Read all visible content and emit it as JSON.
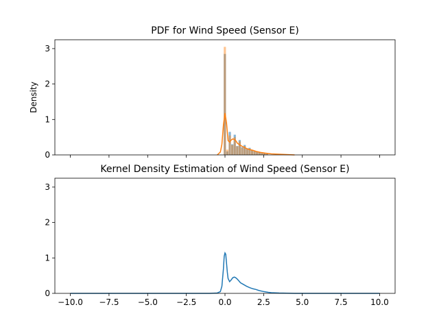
{
  "chart_data": [
    {
      "type": "bar",
      "title": "PDF for Wind Speed (Sensor E)",
      "xlabel": "",
      "ylabel": "Density",
      "xlim": [
        -11.0,
        11.0
      ],
      "ylim": [
        0,
        3.25
      ],
      "x_ticks": [
        -10.0,
        -7.5,
        -5.0,
        -2.5,
        0.0,
        2.5,
        5.0,
        7.5,
        10.0
      ],
      "x_tick_labels_visible": false,
      "y_ticks": [
        0,
        1,
        2,
        3
      ],
      "y_tick_labels": [
        "0",
        "1",
        "2",
        "3"
      ],
      "grid": false,
      "legend": null,
      "colors": {
        "series_a": "#1f77b4",
        "series_b": "#ff7f0e",
        "overlap": "#8c7b6c"
      },
      "series": [
        {
          "type": "histogram",
          "bin_edges": [
            -0.08,
            0.08,
            0.24,
            0.4,
            0.56,
            0.72,
            0.88,
            1.04,
            1.2,
            1.36,
            1.52,
            1.68,
            1.84,
            2.0,
            2.16,
            2.32,
            2.48,
            2.64,
            2.8
          ],
          "values": [
            2.85,
            0.1,
            0.65,
            0.3,
            0.57,
            0.25,
            0.42,
            0.22,
            0.28,
            0.18,
            0.2,
            0.14,
            0.12,
            0.1,
            0.08,
            0.06,
            0.05,
            0.03
          ],
          "color": "#1f77b4"
        },
        {
          "type": "histogram",
          "bin_edges": [
            -0.08,
            0.08,
            0.24,
            0.4,
            0.56,
            0.72,
            0.88,
            1.04,
            1.2,
            1.36,
            1.52,
            1.68,
            1.84,
            2.0,
            2.16,
            2.32,
            2.48,
            2.64,
            2.8
          ],
          "values": [
            3.05,
            0.15,
            0.55,
            0.28,
            0.5,
            0.24,
            0.38,
            0.2,
            0.25,
            0.16,
            0.18,
            0.13,
            0.11,
            0.09,
            0.07,
            0.05,
            0.04,
            0.03
          ],
          "color": "#ff7f0e"
        },
        {
          "type": "kde",
          "x": [
            -0.5,
            -0.3,
            -0.2,
            -0.1,
            0.0,
            0.1,
            0.2,
            0.3,
            0.4,
            0.5,
            0.6,
            0.7,
            0.8,
            1.0,
            1.2,
            1.4,
            1.6,
            1.8,
            2.0,
            2.3,
            2.6,
            3.0,
            3.5,
            4.0,
            4.5
          ],
          "y": [
            0.0,
            0.08,
            0.3,
            0.85,
            1.18,
            0.9,
            0.4,
            0.36,
            0.42,
            0.45,
            0.44,
            0.4,
            0.33,
            0.27,
            0.22,
            0.18,
            0.15,
            0.13,
            0.1,
            0.07,
            0.05,
            0.03,
            0.02,
            0.01,
            0.0
          ],
          "color": "#ff7f0e"
        }
      ]
    },
    {
      "type": "line",
      "title": "Kernel Density Estimation of Wind Speed (Sensor E)",
      "xlabel": "",
      "ylabel": "",
      "xlim": [
        -11.0,
        11.0
      ],
      "ylim": [
        0,
        3.25
      ],
      "x_ticks": [
        -10.0,
        -7.5,
        -5.0,
        -2.5,
        0.0,
        2.5,
        5.0,
        7.5,
        10.0
      ],
      "x_tick_labels": [
        "−10.0",
        "−7.5",
        "−5.0",
        "−2.5",
        "0.0",
        "2.5",
        "5.0",
        "7.5",
        "10.0"
      ],
      "y_ticks": [
        0,
        1,
        2,
        3
      ],
      "y_tick_labels": [
        "0",
        "1",
        "2",
        "3"
      ],
      "grid": false,
      "legend": null,
      "series": [
        {
          "x": [
            -10.0,
            -1.0,
            -0.5,
            -0.3,
            -0.2,
            -0.1,
            -0.05,
            0.0,
            0.05,
            0.1,
            0.15,
            0.2,
            0.3,
            0.4,
            0.5,
            0.6,
            0.7,
            0.8,
            0.9,
            1.0,
            1.2,
            1.4,
            1.6,
            1.8,
            2.0,
            2.2,
            2.5,
            2.8,
            3.0,
            3.5,
            4.0,
            4.5,
            5.0,
            10.0
          ],
          "y": [
            0.0,
            0.0,
            0.01,
            0.05,
            0.2,
            0.7,
            1.05,
            1.14,
            1.1,
            0.85,
            0.6,
            0.42,
            0.33,
            0.38,
            0.44,
            0.46,
            0.44,
            0.4,
            0.35,
            0.3,
            0.25,
            0.2,
            0.16,
            0.13,
            0.11,
            0.08,
            0.05,
            0.03,
            0.02,
            0.01,
            0.005,
            0.0,
            0.0,
            0.0
          ],
          "color": "#1f77b4"
        }
      ]
    }
  ]
}
